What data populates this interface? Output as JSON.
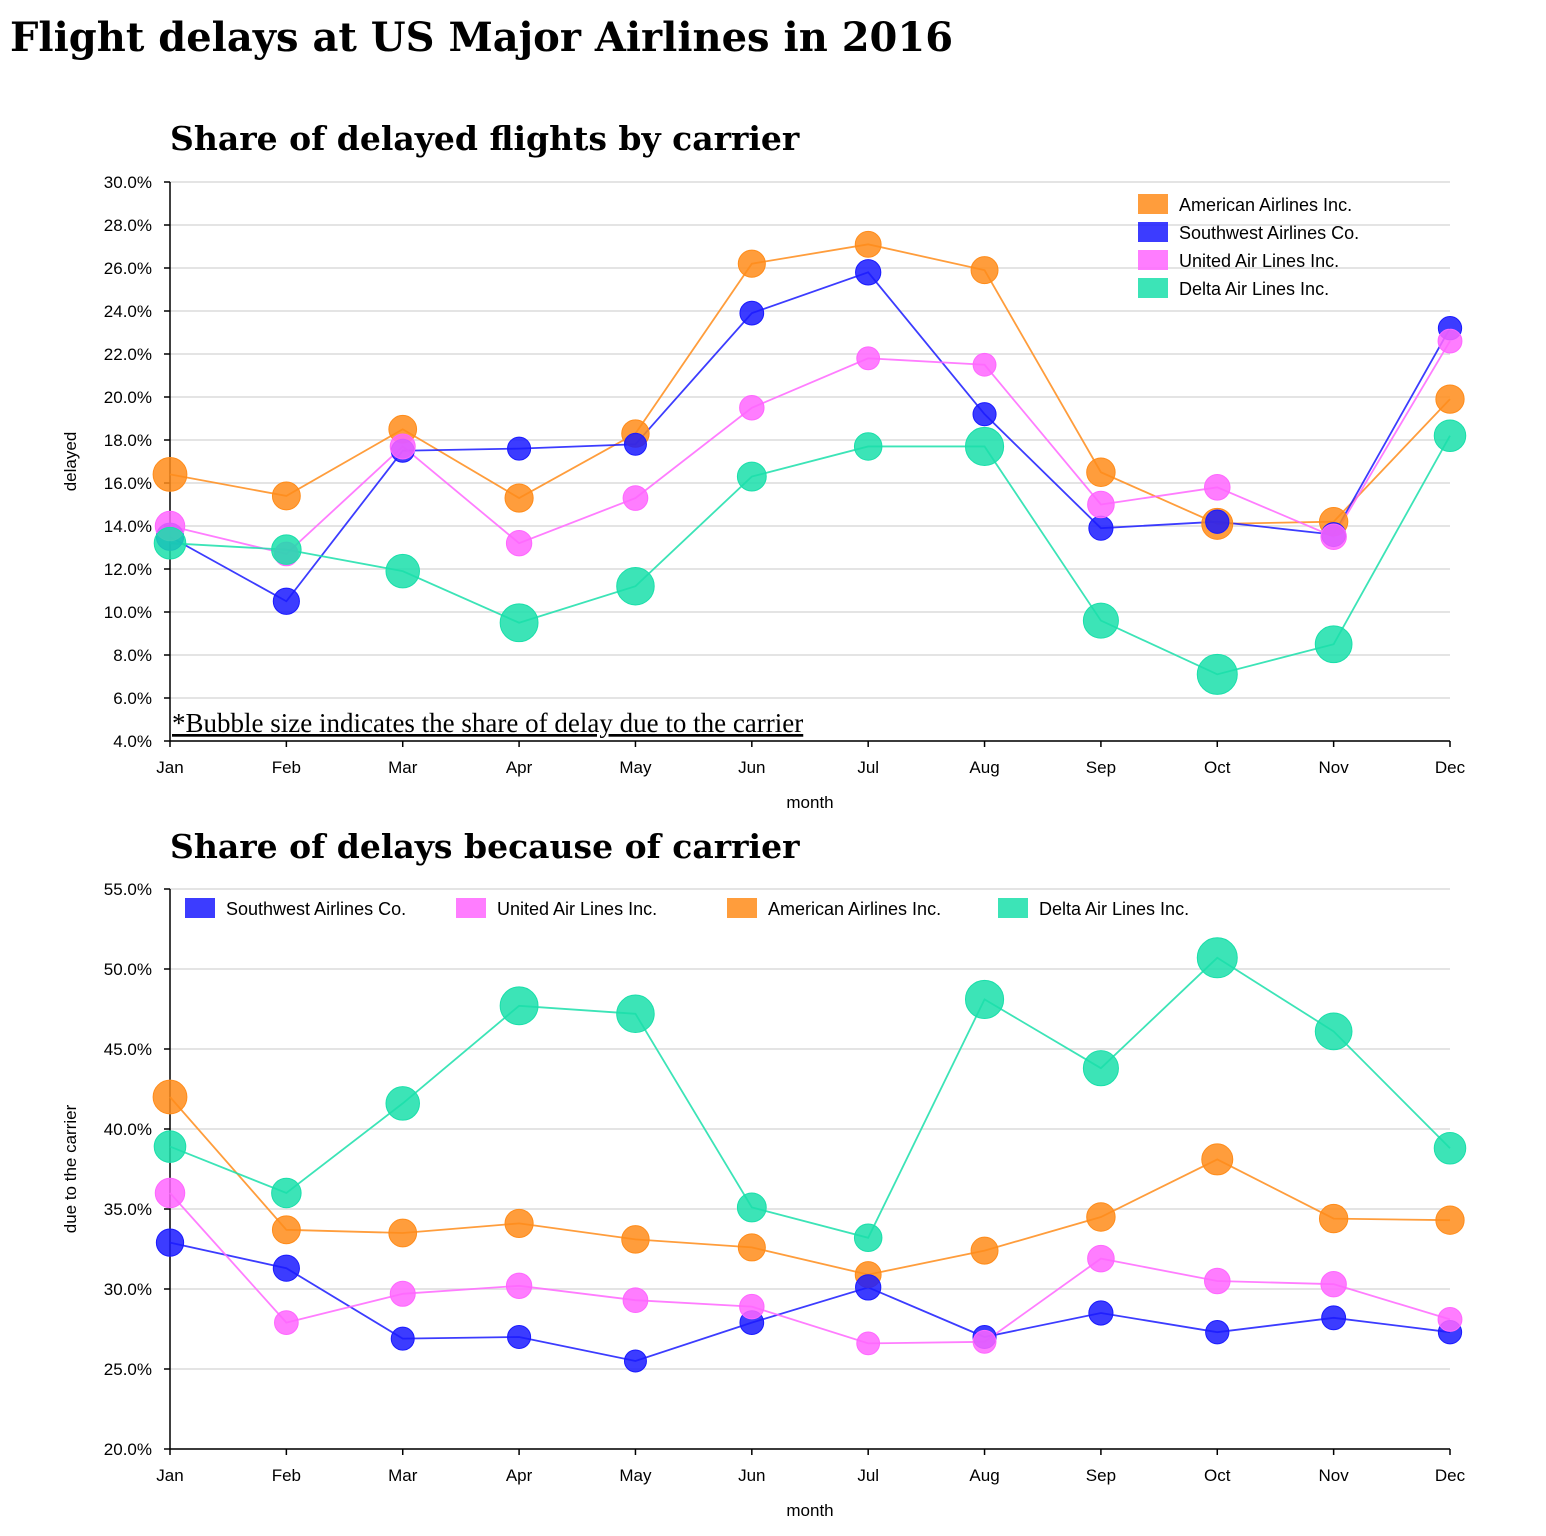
{
  "page": {
    "title": "Flight delays at US Major Airlines in 2016"
  },
  "colors": {
    "American Airlines Inc.": "#ff8c1a",
    "Southwest Airlines Co.": "#1a1aff",
    "United Air Lines Inc.": "#ff66ff",
    "Delta Air Lines Inc.": "#1adfaa"
  },
  "chart_data": [
    {
      "type": "line",
      "title": "Share of delayed flights by carrier",
      "xlabel": "month",
      "ylabel": "delayed",
      "categories": [
        "Jan",
        "Feb",
        "Mar",
        "Apr",
        "May",
        "Jun",
        "Jul",
        "Aug",
        "Sep",
        "Oct",
        "Nov",
        "Dec"
      ],
      "ylim": [
        4.0,
        30.0
      ],
      "y_ticks": [
        "4.0%",
        "6.0%",
        "8.0%",
        "10.0%",
        "12.0%",
        "14.0%",
        "16.0%",
        "18.0%",
        "20.0%",
        "22.0%",
        "24.0%",
        "26.0%",
        "28.0%",
        "30.0%"
      ],
      "grid": true,
      "legend_position": "top-right",
      "legend_order": [
        "American Airlines Inc.",
        "Southwest Airlines Co.",
        "United Air Lines Inc.",
        "Delta Air Lines Inc."
      ],
      "note": "*Bubble size indicates the share of delay due to the carrier",
      "series": [
        {
          "name": "American Airlines Inc.",
          "values": [
            16.4,
            15.4,
            18.5,
            15.3,
            18.3,
            26.2,
            27.1,
            25.9,
            16.5,
            14.1,
            14.2,
            19.9
          ],
          "bubble": [
            42.0,
            33.7,
            33.5,
            34.1,
            33.1,
            32.6,
            30.9,
            32.4,
            34.5,
            38.1,
            34.4,
            34.3
          ]
        },
        {
          "name": "Southwest Airlines Co.",
          "values": [
            13.5,
            10.5,
            17.5,
            17.6,
            17.8,
            23.9,
            25.8,
            19.2,
            13.9,
            14.2,
            13.6,
            23.2
          ],
          "bubble": [
            32.9,
            31.3,
            26.9,
            27.0,
            25.5,
            27.9,
            30.1,
            27.0,
            28.5,
            27.3,
            28.2,
            27.3
          ]
        },
        {
          "name": "United Air Lines Inc.",
          "values": [
            14.0,
            12.7,
            17.7,
            13.2,
            15.3,
            19.5,
            21.8,
            21.5,
            15.0,
            15.8,
            13.5,
            22.6
          ],
          "bubble": [
            36.0,
            27.9,
            29.7,
            30.2,
            29.3,
            28.9,
            26.6,
            26.7,
            31.9,
            30.5,
            30.3,
            28.1
          ]
        },
        {
          "name": "Delta Air Lines Inc.",
          "values": [
            13.2,
            12.9,
            11.9,
            9.5,
            11.2,
            16.3,
            17.7,
            17.7,
            9.6,
            7.1,
            8.5,
            18.2
          ],
          "bubble": [
            38.9,
            36.0,
            41.6,
            47.7,
            47.2,
            35.1,
            33.2,
            48.1,
            43.8,
            50.7,
            46.1,
            38.8
          ]
        }
      ]
    },
    {
      "type": "line",
      "title": "Share of delays because of carrier",
      "xlabel": "month",
      "ylabel": "due to the carrier",
      "categories": [
        "Jan",
        "Feb",
        "Mar",
        "Apr",
        "May",
        "Jun",
        "Jul",
        "Aug",
        "Sep",
        "Oct",
        "Nov",
        "Dec"
      ],
      "ylim": [
        20.0,
        55.0
      ],
      "y_ticks": [
        "20.0%",
        "25.0%",
        "30.0%",
        "35.0%",
        "40.0%",
        "45.0%",
        "50.0%",
        "55.0%"
      ],
      "grid": true,
      "legend_position": "top",
      "legend_order": [
        "Southwest Airlines Co.",
        "United Air Lines Inc.",
        "American Airlines Inc.",
        "Delta Air Lines Inc."
      ],
      "series": [
        {
          "name": "American Airlines Inc.",
          "values": [
            42.0,
            33.7,
            33.5,
            34.1,
            33.1,
            32.6,
            30.9,
            32.4,
            34.5,
            38.1,
            34.4,
            34.3
          ]
        },
        {
          "name": "Southwest Airlines Co.",
          "values": [
            32.9,
            31.3,
            26.9,
            27.0,
            25.5,
            27.9,
            30.1,
            27.0,
            28.5,
            27.3,
            28.2,
            27.3
          ]
        },
        {
          "name": "United Air Lines Inc.",
          "values": [
            36.0,
            27.9,
            29.7,
            30.2,
            29.3,
            28.9,
            26.6,
            26.7,
            31.9,
            30.5,
            30.3,
            28.1
          ]
        },
        {
          "name": "Delta Air Lines Inc.",
          "values": [
            38.9,
            36.0,
            41.6,
            47.7,
            47.2,
            35.1,
            33.2,
            48.1,
            43.8,
            50.7,
            46.1,
            38.8
          ]
        }
      ]
    }
  ]
}
